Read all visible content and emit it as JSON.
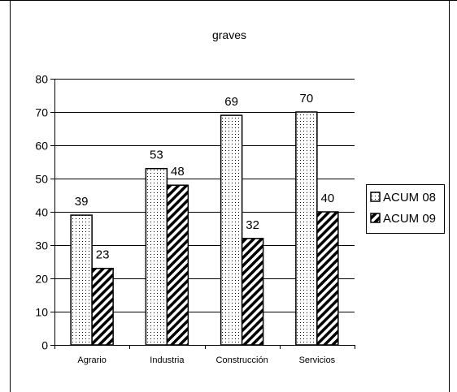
{
  "chart_data": {
    "type": "bar",
    "title": "graves",
    "categories": [
      "Agrario",
      "Industria",
      "Construcción",
      "Servicios"
    ],
    "series": [
      {
        "name": "ACUM 08",
        "values": [
          39,
          53,
          69,
          70
        ],
        "pattern": "dots"
      },
      {
        "name": "ACUM 09",
        "values": [
          23,
          48,
          32,
          40
        ],
        "pattern": "hatch"
      }
    ],
    "ylim": [
      0,
      80
    ],
    "yticks": [
      0,
      10,
      20,
      30,
      40,
      50,
      60,
      70,
      80
    ],
    "grid": true,
    "legend": "right",
    "data_labels": true,
    "colors": {
      "bar_fill": "#ffffff",
      "bar_stroke": "#000000",
      "grid": "#000000"
    }
  }
}
